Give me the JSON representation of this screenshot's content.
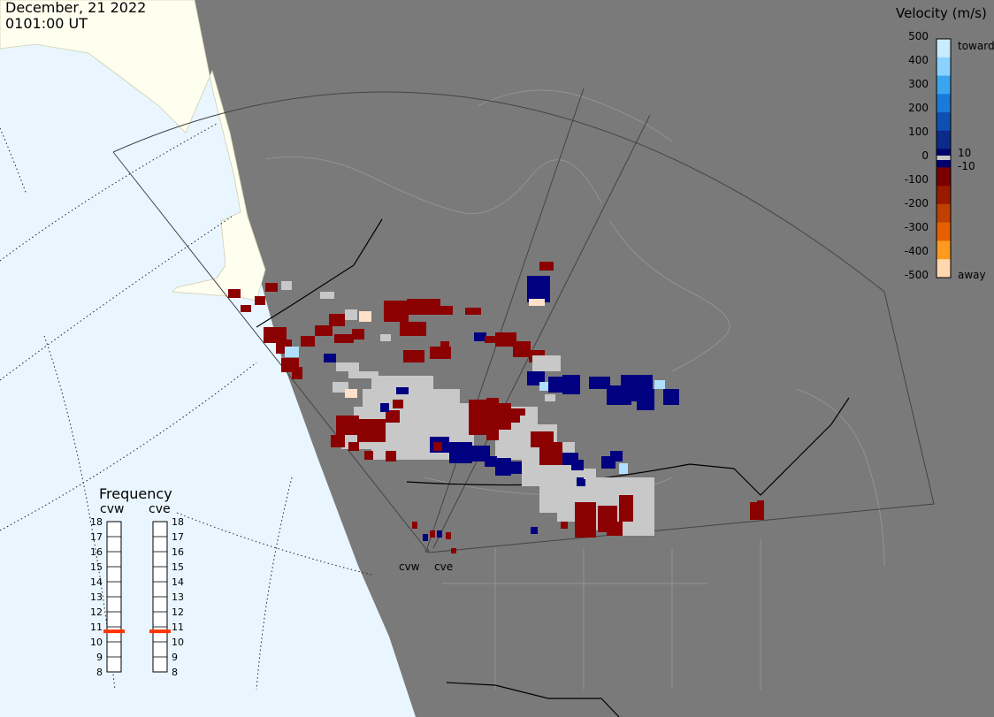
{
  "header": {
    "date": "December, 21 2022",
    "time": "0101:00 UT"
  },
  "colorbar": {
    "title": "Velocity (m/s)",
    "ticks": [
      "500",
      "400",
      "300",
      "200",
      "100",
      "0",
      "-100",
      "-200",
      "-300",
      "-400",
      "-500"
    ],
    "inner_labels": [
      "10",
      "-10"
    ],
    "toward_label": "toward",
    "away_label": "away",
    "colors": [
      "#c8ecff",
      "#8cd2ff",
      "#3aa6f0",
      "#1a7ad8",
      "#0f4fb0",
      "#0b2a8a",
      "#00006e",
      "#7a0000",
      "#9a1a00",
      "#c04000",
      "#e66000",
      "#ff9a20",
      "#ffd8b0"
    ]
  },
  "frequency": {
    "title": "Frequency",
    "radars": [
      "cvw",
      "cve"
    ],
    "scale": [
      "18",
      "17",
      "16",
      "15",
      "14",
      "13",
      "12",
      "11",
      "10",
      "9",
      "8"
    ],
    "cvw_mhz": 10.7,
    "cve_mhz": 10.7,
    "marker_color": "#ff3300"
  },
  "stations": {
    "cvw": "cvw",
    "cve": "cve"
  },
  "map_colors": {
    "ocean": "#eaf6ff",
    "land": "#fffff0",
    "night": "#7a7a7a",
    "scatter_gray": "#c8c8c8",
    "neg": "#8b0000",
    "pos": "#000080",
    "light_pos": "#b0e0ff",
    "light_neg": "#ffe0c8"
  }
}
